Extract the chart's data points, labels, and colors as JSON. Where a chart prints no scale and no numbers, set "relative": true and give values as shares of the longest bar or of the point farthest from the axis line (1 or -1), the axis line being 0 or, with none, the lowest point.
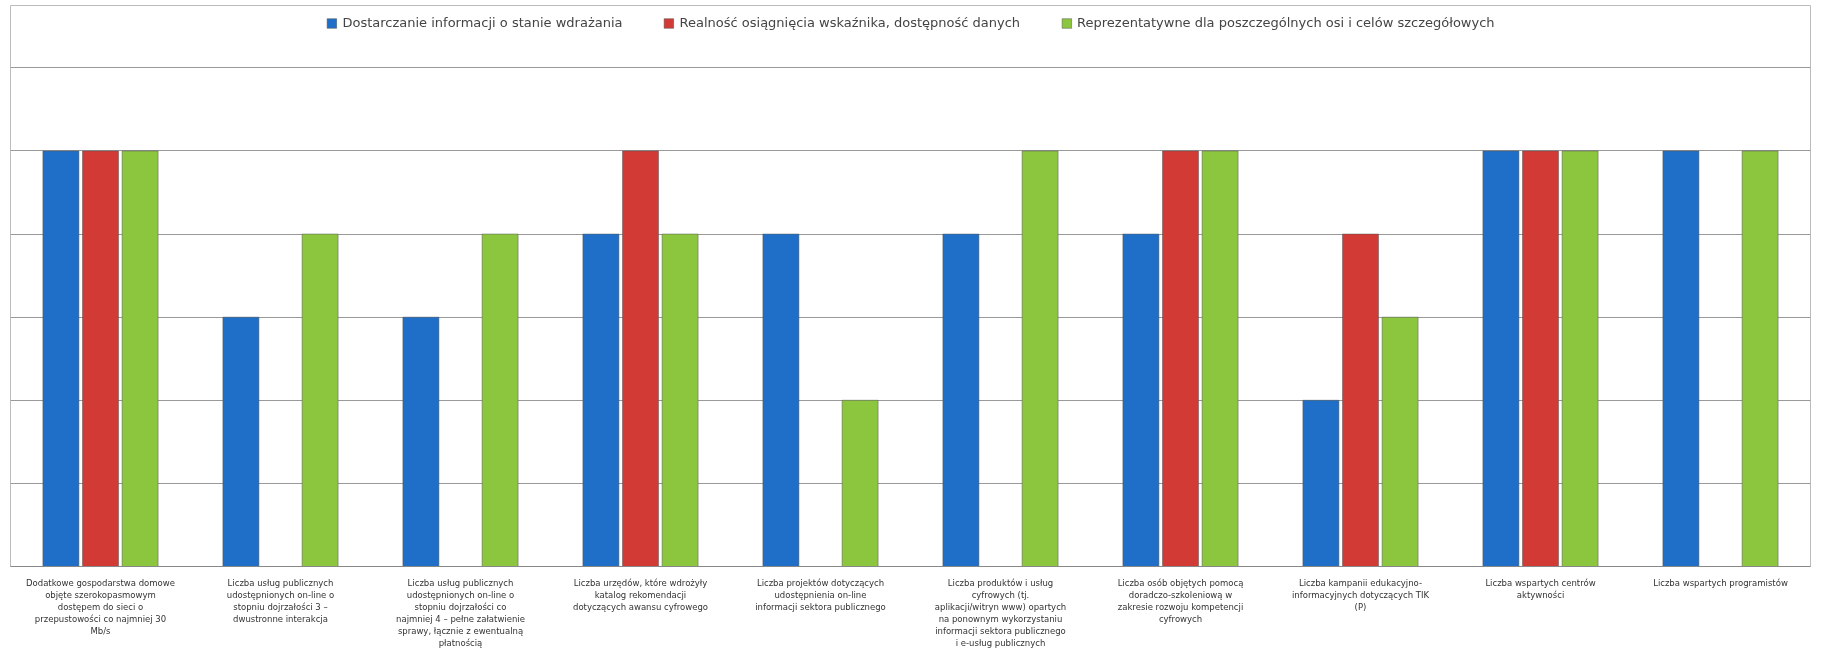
{
  "chart_data": {
    "type": "bar",
    "relative": true,
    "grid": "y",
    "legend": "top",
    "categories": [
      "Dodatkowe gospodarstwa domowe objęte szerokopasmowym dostępem do sieci o przepustowości co najmniej 30 Mb/s",
      "Liczba usług publicznych udostępnionych on-line o stopniu dojrzałości 3 – dwustronne interakcja",
      "Liczba usług publicznych udostępnionych on-line o stopniu dojrzałości co najmniej 4 – pełne załatwienie sprawy, łącznie z ewentualną płatnością",
      "Liczba urzędów, które wdrożyły katalog rekomendacji dotyczących awansu cyfrowego",
      "Liczba projektów dotyczących udostępnienia on-line informacji sektora publicznego",
      "Liczba produktów i usług cyfrowych (tj. aplikacji/witryn www) opartych na ponownym wykorzystaniu informacji sektora publicznego i e-usług publicznych",
      "Liczba osób objętych pomocą doradczo-szkoleniową w zakresie rozwoju kompetencji cyfrowych",
      "Liczba kampanii edukacyjno-informacyjnych dotyczących TIK (P)",
      "Liczba wspartych centrów aktywności",
      "Liczba wspartych programistów"
    ],
    "series": [
      {
        "name": "Dostarczanie informacji o stanie wdrażania",
        "color": "#1f6fc8",
        "values": [
          1,
          0.6,
          0.6,
          0.8,
          0.8,
          0.8,
          0.8,
          0.4,
          1,
          1
        ]
      },
      {
        "name": "Realność osiągnięcia wskaźnika, dostępność danych",
        "color": "#d23a35",
        "values": [
          1,
          null,
          null,
          1,
          null,
          null,
          1,
          0.8,
          1,
          null
        ]
      },
      {
        "name": "Reprezentatywne dla poszczególnych osi i celów szczegółowych",
        "color": "#8cc63e",
        "values": [
          1,
          0.8,
          0.8,
          0.8,
          0.4,
          1,
          1,
          0.6,
          1,
          1
        ]
      }
    ]
  }
}
